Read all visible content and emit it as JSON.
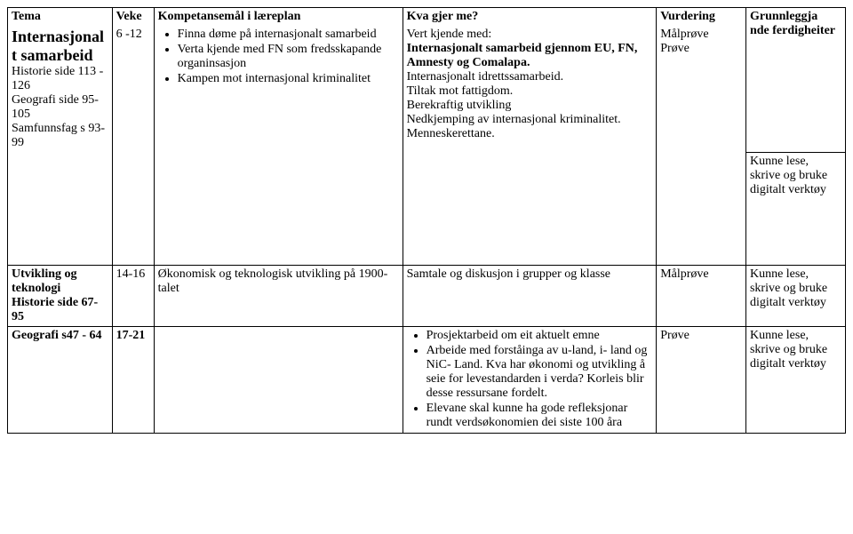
{
  "headers": {
    "tema": "Tema",
    "veke": "Veke",
    "komp": "Kompetansemål i læreplan",
    "kva": "Kva gjer me?",
    "vurd": "Vurdering",
    "grunn": "Grunnleggja\nnde ferdigheiter"
  },
  "row1": {
    "tema_title": "Internasjonalt samarbeid",
    "tema_sub": "Historie side 113 - 126\nGeografi side 95-105\nSamfunnsfag s 93-99",
    "veke": "6 -12",
    "komp_items": [
      "Finna døme på internasjonalt samarbeid",
      "Verta kjende med FN som fredsskapande organinsasjon",
      "Kampen mot internasjonal kriminalitet"
    ],
    "kva_lead": "Vert kjende med:",
    "kva_bold": "Internasjonalt samarbeid gjennom EU, FN, Amnesty og Comalapa.",
    "kva_rest": "Internasjonalt idrettssamarbeid.\nTiltak mot fattigdom.\nBerekraftig utvikling\nNedkjemping av internasjonal kriminalitet.\nMenneskerettane.",
    "vurd": "Målprøve\nPrøve",
    "grunn": "Kunne lese, skrive  og bruke digitalt verktøy"
  },
  "row2": {
    "tema_title": "Utvikling og teknologi",
    "tema_sub": "Historie side 67-95",
    "veke": "14-16",
    "komp": "Økonomisk og teknologisk utvikling på 1900-talet",
    "kva": "Samtale og diskusjon i grupper og klasse",
    "vurd": "Målprøve",
    "grunn": "Kunne lese, skrive og bruke digitalt verktøy"
  },
  "row3": {
    "tema_title": "Geografi s47 - 64",
    "veke": "17-21",
    "kva_items": [
      "Prosjektarbeid om eit aktuelt emne",
      "Arbeide med forståinga av u-land, i- land og NiC- Land. Kva har økonomi og utvikling å seie for levestandarden i verda? Korleis blir desse ressursane fordelt.",
      "Elevane skal kunne ha gode refleksjonar rundt verdsøkonomien dei siste 100 åra"
    ],
    "vurd": "Prøve",
    "grunn": "Kunne lese, skrive og bruke digitalt verktøy"
  }
}
